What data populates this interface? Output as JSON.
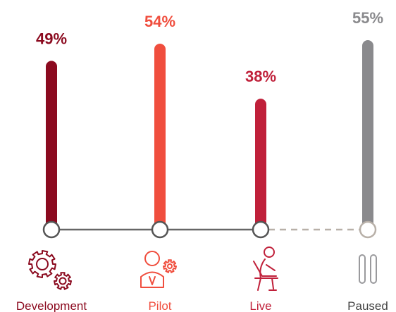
{
  "chart_data": {
    "type": "bar",
    "categories": [
      "Development",
      "Pilot",
      "Live",
      "Paused"
    ],
    "values": [
      49,
      54,
      38,
      55
    ],
    "value_labels": [
      "49%",
      "54%",
      "38%",
      "55%"
    ],
    "unit": "%",
    "title": "",
    "xlabel": "",
    "ylabel": "",
    "ylim": [
      0,
      60
    ],
    "grid": false,
    "legend": "none",
    "colors": [
      "#8b0a1f",
      "#f04e3e",
      "#c0203a",
      "#8a8a8d"
    ],
    "label_colors": [
      "#8b0a1f",
      "#f04e3e",
      "#c0203a",
      "#8a8a8d"
    ],
    "icons": [
      "gears-icon",
      "person-gear-icon",
      "person-laptop-icon",
      "pause-icon"
    ],
    "connector": {
      "solid_color": "#666666",
      "dashed_color": "#b8b0a8",
      "dashed_from_index": 2
    }
  }
}
